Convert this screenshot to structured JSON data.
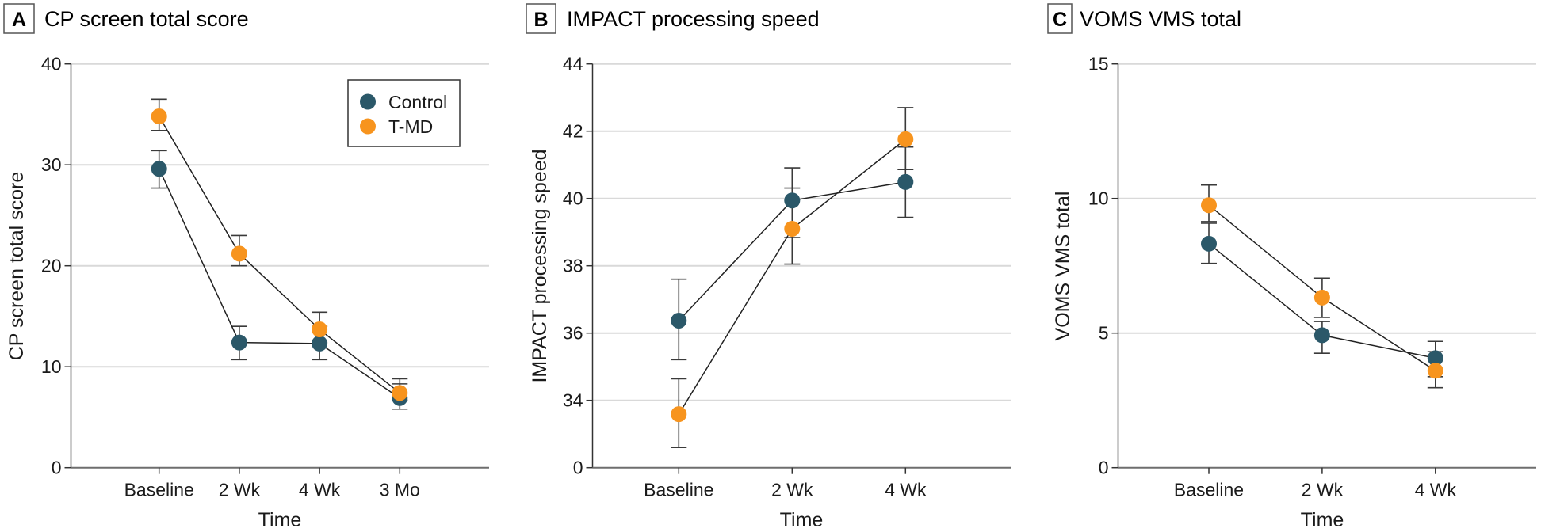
{
  "colors": {
    "Control": "#2B5869",
    "T-MD": "#F7941E"
  },
  "legend": [
    {
      "label": "Control",
      "color": "#2B5869"
    },
    {
      "label": "T-MD",
      "color": "#F7941E"
    }
  ],
  "chart_data": [
    {
      "type": "line",
      "panel_letter": "A",
      "title": "CP screen total score",
      "xlabel": "Time",
      "ylabel": "CP screen total score",
      "categories": [
        "Baseline",
        "2 Wk",
        "4 Wk",
        "3 Mo"
      ],
      "ylim": [
        0,
        40
      ],
      "yticks": [
        0,
        10,
        20,
        30,
        40
      ],
      "ytick_labels": [
        "0",
        "10",
        "20",
        "30",
        "40"
      ],
      "grid": true,
      "legend_position": "top-right",
      "series": [
        {
          "name": "Control",
          "values": [
            29.6,
            12.4,
            12.3,
            6.9
          ],
          "lower": [
            27.7,
            10.7,
            10.7,
            5.8
          ],
          "upper": [
            31.4,
            14.0,
            14.0,
            8.3
          ]
        },
        {
          "name": "T-MD",
          "values": [
            34.8,
            21.2,
            13.7,
            7.4
          ],
          "lower": [
            33.4,
            20.0,
            12.4,
            6.7
          ],
          "upper": [
            36.5,
            23.0,
            15.4,
            8.8
          ]
        }
      ]
    },
    {
      "type": "line",
      "panel_letter": "B",
      "title": "IMPACT processing speed",
      "xlabel": "Time",
      "ylabel": "IMPACT processing speed",
      "categories": [
        "Baseline",
        "2 Wk",
        "4 Wk"
      ],
      "ylim": [
        32,
        44
      ],
      "axis_break": true,
      "yticks": [
        32,
        34,
        36,
        38,
        40,
        42,
        44
      ],
      "ytick_labels": [
        "0",
        "34",
        "36",
        "38",
        "40",
        "42",
        "44"
      ],
      "grid": true,
      "series": [
        {
          "name": "Control",
          "values": [
            36.37,
            39.94,
            40.49
          ],
          "lower": [
            35.21,
            38.84,
            39.44
          ],
          "upper": [
            37.6,
            40.91,
            41.53
          ]
        },
        {
          "name": "T-MD",
          "values": [
            33.59,
            39.1,
            41.76
          ],
          "lower": [
            32.6,
            38.05,
            40.86
          ],
          "upper": [
            34.64,
            40.31,
            42.7
          ]
        }
      ]
    },
    {
      "type": "line",
      "panel_letter": "C",
      "title": "VOMS VMS total",
      "xlabel": "Time",
      "ylabel": "VOMS VMS total",
      "categories": [
        "Baseline",
        "2 Wk",
        "4 Wk"
      ],
      "ylim": [
        0,
        15
      ],
      "yticks": [
        0,
        5,
        10,
        15
      ],
      "ytick_labels": [
        "0",
        "5",
        "10",
        "15"
      ],
      "grid": true,
      "series": [
        {
          "name": "Control",
          "values": [
            8.32,
            4.92,
            4.07
          ],
          "lower": [
            7.59,
            4.25,
            3.38
          ],
          "upper": [
            9.08,
            5.43,
            4.69
          ]
        },
        {
          "name": "T-MD",
          "values": [
            9.75,
            6.32,
            3.6
          ],
          "lower": [
            9.14,
            5.58,
            2.97
          ],
          "upper": [
            10.5,
            7.04,
            4.31
          ]
        }
      ]
    }
  ]
}
